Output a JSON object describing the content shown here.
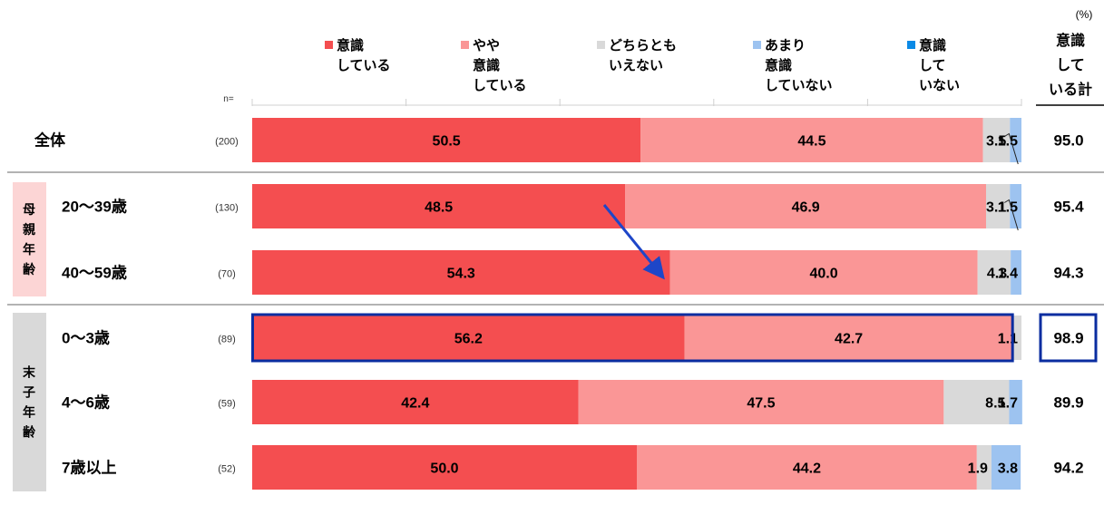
{
  "chart_data": {
    "type": "bar",
    "orientation": "horizontal",
    "stacked": true,
    "unit": "(%)",
    "n_label": "n=",
    "legend": [
      {
        "lines": [
          "意識",
          "している"
        ],
        "color": "#F44E50"
      },
      {
        "lines": [
          "やや",
          "意識",
          "している"
        ],
        "color": "#FA9696"
      },
      {
        "lines": [
          "どちらとも",
          "いえない"
        ],
        "color": "#D9D9D9"
      },
      {
        "lines": [
          "あまり",
          "意識",
          "していない"
        ],
        "color": "#9DC3F0"
      },
      {
        "lines": [
          "意識",
          "して",
          "いない"
        ],
        "color": "#0B8AE6"
      }
    ],
    "total_header": [
      "意識",
      "して",
      "いる計"
    ],
    "groups": [
      {
        "name": "",
        "label_lines": [],
        "rows": [
          0
        ]
      },
      {
        "name": "母親年齢",
        "label_lines": [
          "母",
          "親",
          "年",
          "齢"
        ],
        "rows": [
          1,
          2
        ],
        "bg": "#FCD5D5"
      },
      {
        "name": "末子年齢",
        "label_lines": [
          "末",
          "子",
          "年",
          "齢"
        ],
        "rows": [
          3,
          4,
          5
        ],
        "bg": "#D9D9D9"
      }
    ],
    "rows": [
      {
        "label": "全体",
        "n": "(200)",
        "values": [
          50.5,
          44.5,
          3.5,
          1.5,
          0
        ],
        "labels": [
          "50.5",
          "44.5",
          "3.5",
          "1.5",
          ""
        ],
        "total": "95.0"
      },
      {
        "label": "20～39歳",
        "n": "(130)",
        "values": [
          48.5,
          46.9,
          3.1,
          1.5,
          0
        ],
        "labels": [
          "48.5",
          "46.9",
          "3.1",
          "1.5",
          ""
        ],
        "total": "95.4"
      },
      {
        "label": "40～59歳",
        "n": "(70)",
        "values": [
          54.3,
          40.0,
          4.3,
          1.4,
          0
        ],
        "labels": [
          "54.3",
          "40.0",
          "4.3",
          "1.4",
          ""
        ],
        "total": "94.3"
      },
      {
        "label": "0～3歳",
        "n": "(89)",
        "values": [
          56.2,
          42.7,
          1.1,
          0,
          0
        ],
        "labels": [
          "56.2",
          "42.7",
          "1.1",
          "",
          ""
        ],
        "total": "98.9",
        "highlight": true
      },
      {
        "label": "4～6歳",
        "n": "(59)",
        "values": [
          42.4,
          47.5,
          8.5,
          1.7,
          0
        ],
        "labels": [
          "42.4",
          "47.5",
          "8.5",
          "1.7",
          ""
        ],
        "total": "89.9"
      },
      {
        "label": "7歳以上",
        "n": "(52)",
        "values": [
          50.0,
          44.2,
          1.9,
          3.8,
          0
        ],
        "labels": [
          "50.0",
          "44.2",
          "1.9",
          "3.8",
          ""
        ],
        "total": "94.2"
      }
    ],
    "highlight_color": "#0A2DA0",
    "arrow_color": "#1E46C8",
    "xlim": [
      0,
      100
    ]
  }
}
